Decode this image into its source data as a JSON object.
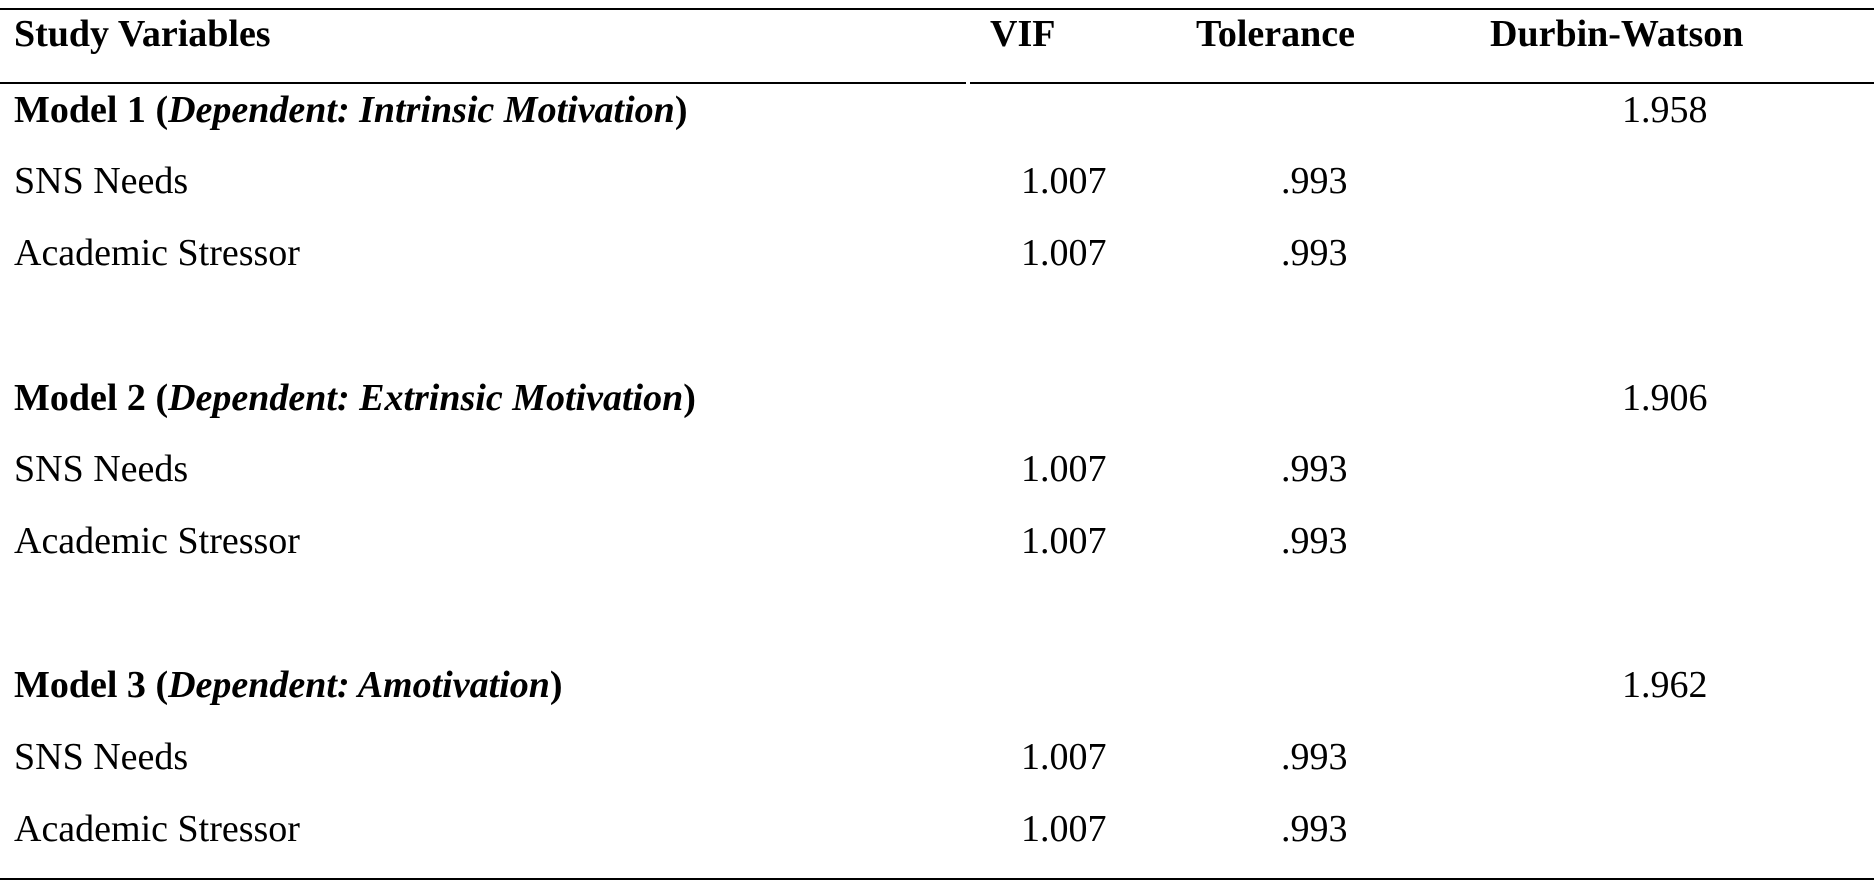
{
  "headers": {
    "variables": "Study Variables",
    "vif": "VIF",
    "tolerance": "Tolerance",
    "durbin_watson": "Durbin-Watson"
  },
  "models": [
    {
      "title": "Model 1",
      "open": " (",
      "dependent": "Dependent: Intrinsic Motivation",
      "close": ")",
      "durbin_watson": "1.958",
      "rows": [
        {
          "variable": "SNS Needs",
          "vif": "1.007",
          "tolerance": ".993"
        },
        {
          "variable": "Academic Stressor",
          "vif": "1.007",
          "tolerance": ".993"
        }
      ]
    },
    {
      "title": "Model 2",
      "open": " (",
      "dependent": "Dependent: Extrinsic Motivation",
      "close": ")",
      "durbin_watson": "1.906",
      "rows": [
        {
          "variable": "SNS Needs",
          "vif": "1.007",
          "tolerance": ".993"
        },
        {
          "variable": "Academic Stressor",
          "vif": "1.007",
          "tolerance": ".993"
        }
      ]
    },
    {
      "title": "Model 3",
      "open": " (",
      "dependent": "Dependent: Amotivation",
      "close": ")",
      "durbin_watson": "1.962",
      "rows": [
        {
          "variable": "SNS Needs",
          "vif": "1.007",
          "tolerance": ".993"
        },
        {
          "variable": "Academic Stressor",
          "vif": "1.007",
          "tolerance": ".993"
        }
      ]
    }
  ]
}
